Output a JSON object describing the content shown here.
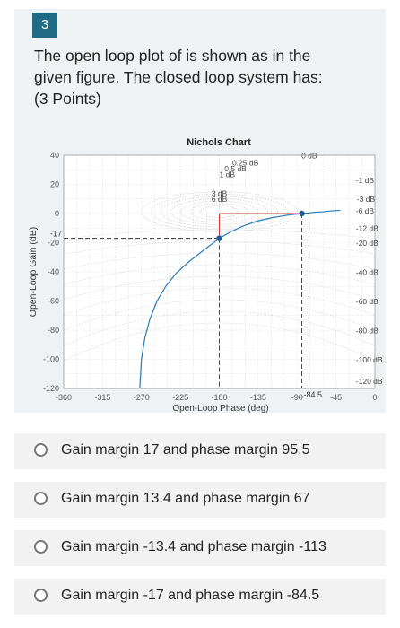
{
  "question": {
    "number": "3",
    "text_line1": "The open loop plot of is shown as in the",
    "text_line2": "given figure. The closed loop system has:",
    "points": "(3 Points)"
  },
  "chart_data": {
    "type": "line",
    "title": "Nichols Chart",
    "xlabel": "Open-Loop Phase (deg)",
    "ylabel": "Open-Loop Gain (dB)",
    "xlim": [
      -360,
      0
    ],
    "ylim": [
      -120,
      40
    ],
    "xticks": [
      "-360",
      "-315",
      "-270",
      "-225",
      "-180",
      "-135",
      "-90",
      "-45",
      "0"
    ],
    "yticks": [
      "40",
      "20",
      "0",
      "-20",
      "-40",
      "-60",
      "-80",
      "-100",
      "-120"
    ],
    "extra_labels": {
      "gain_mark": "-17",
      "phase_mark": "-84.5"
    },
    "grid": true,
    "m_circles": [
      "0.25 dB",
      "0.5 dB",
      "1 dB",
      "3 dB",
      "6 dB",
      "0 dB",
      "-1 dB",
      "-3 dB",
      "-6 dB",
      "-12 dB",
      "-20 dB",
      "-40 dB",
      "-60 dB",
      "-80 dB",
      "-100 dB",
      "-120 dB"
    ],
    "series": [
      {
        "color": "#2a7ab8",
        "x": [
          -272,
          -270,
          -266,
          -260,
          -252,
          -242,
          -230,
          -215,
          -200,
          -190,
          -180,
          -165,
          -150,
          -135,
          -120,
          -105,
          -95,
          -84.5,
          -70,
          -60,
          -50,
          -40
        ],
        "y": [
          -120,
          -100,
          -85,
          -72,
          -60,
          -50,
          -41,
          -33,
          -26,
          -21.5,
          -17,
          -12,
          -8,
          -5,
          -3,
          -1.5,
          -0.6,
          0,
          0.8,
          1.2,
          1.8,
          2.2
        ]
      }
    ],
    "markers": [
      {
        "x": -180,
        "y": -17
      },
      {
        "x": -84.5,
        "y": 0
      }
    ]
  },
  "options": [
    {
      "label": "Gain margin 17 and phase margin 95.5"
    },
    {
      "label": "Gain margin 13.4 and phase margin 67"
    },
    {
      "label": "Gain margin -13.4 and phase margin -113"
    },
    {
      "label": "Gain margin -17 and phase margin -84.5"
    }
  ]
}
